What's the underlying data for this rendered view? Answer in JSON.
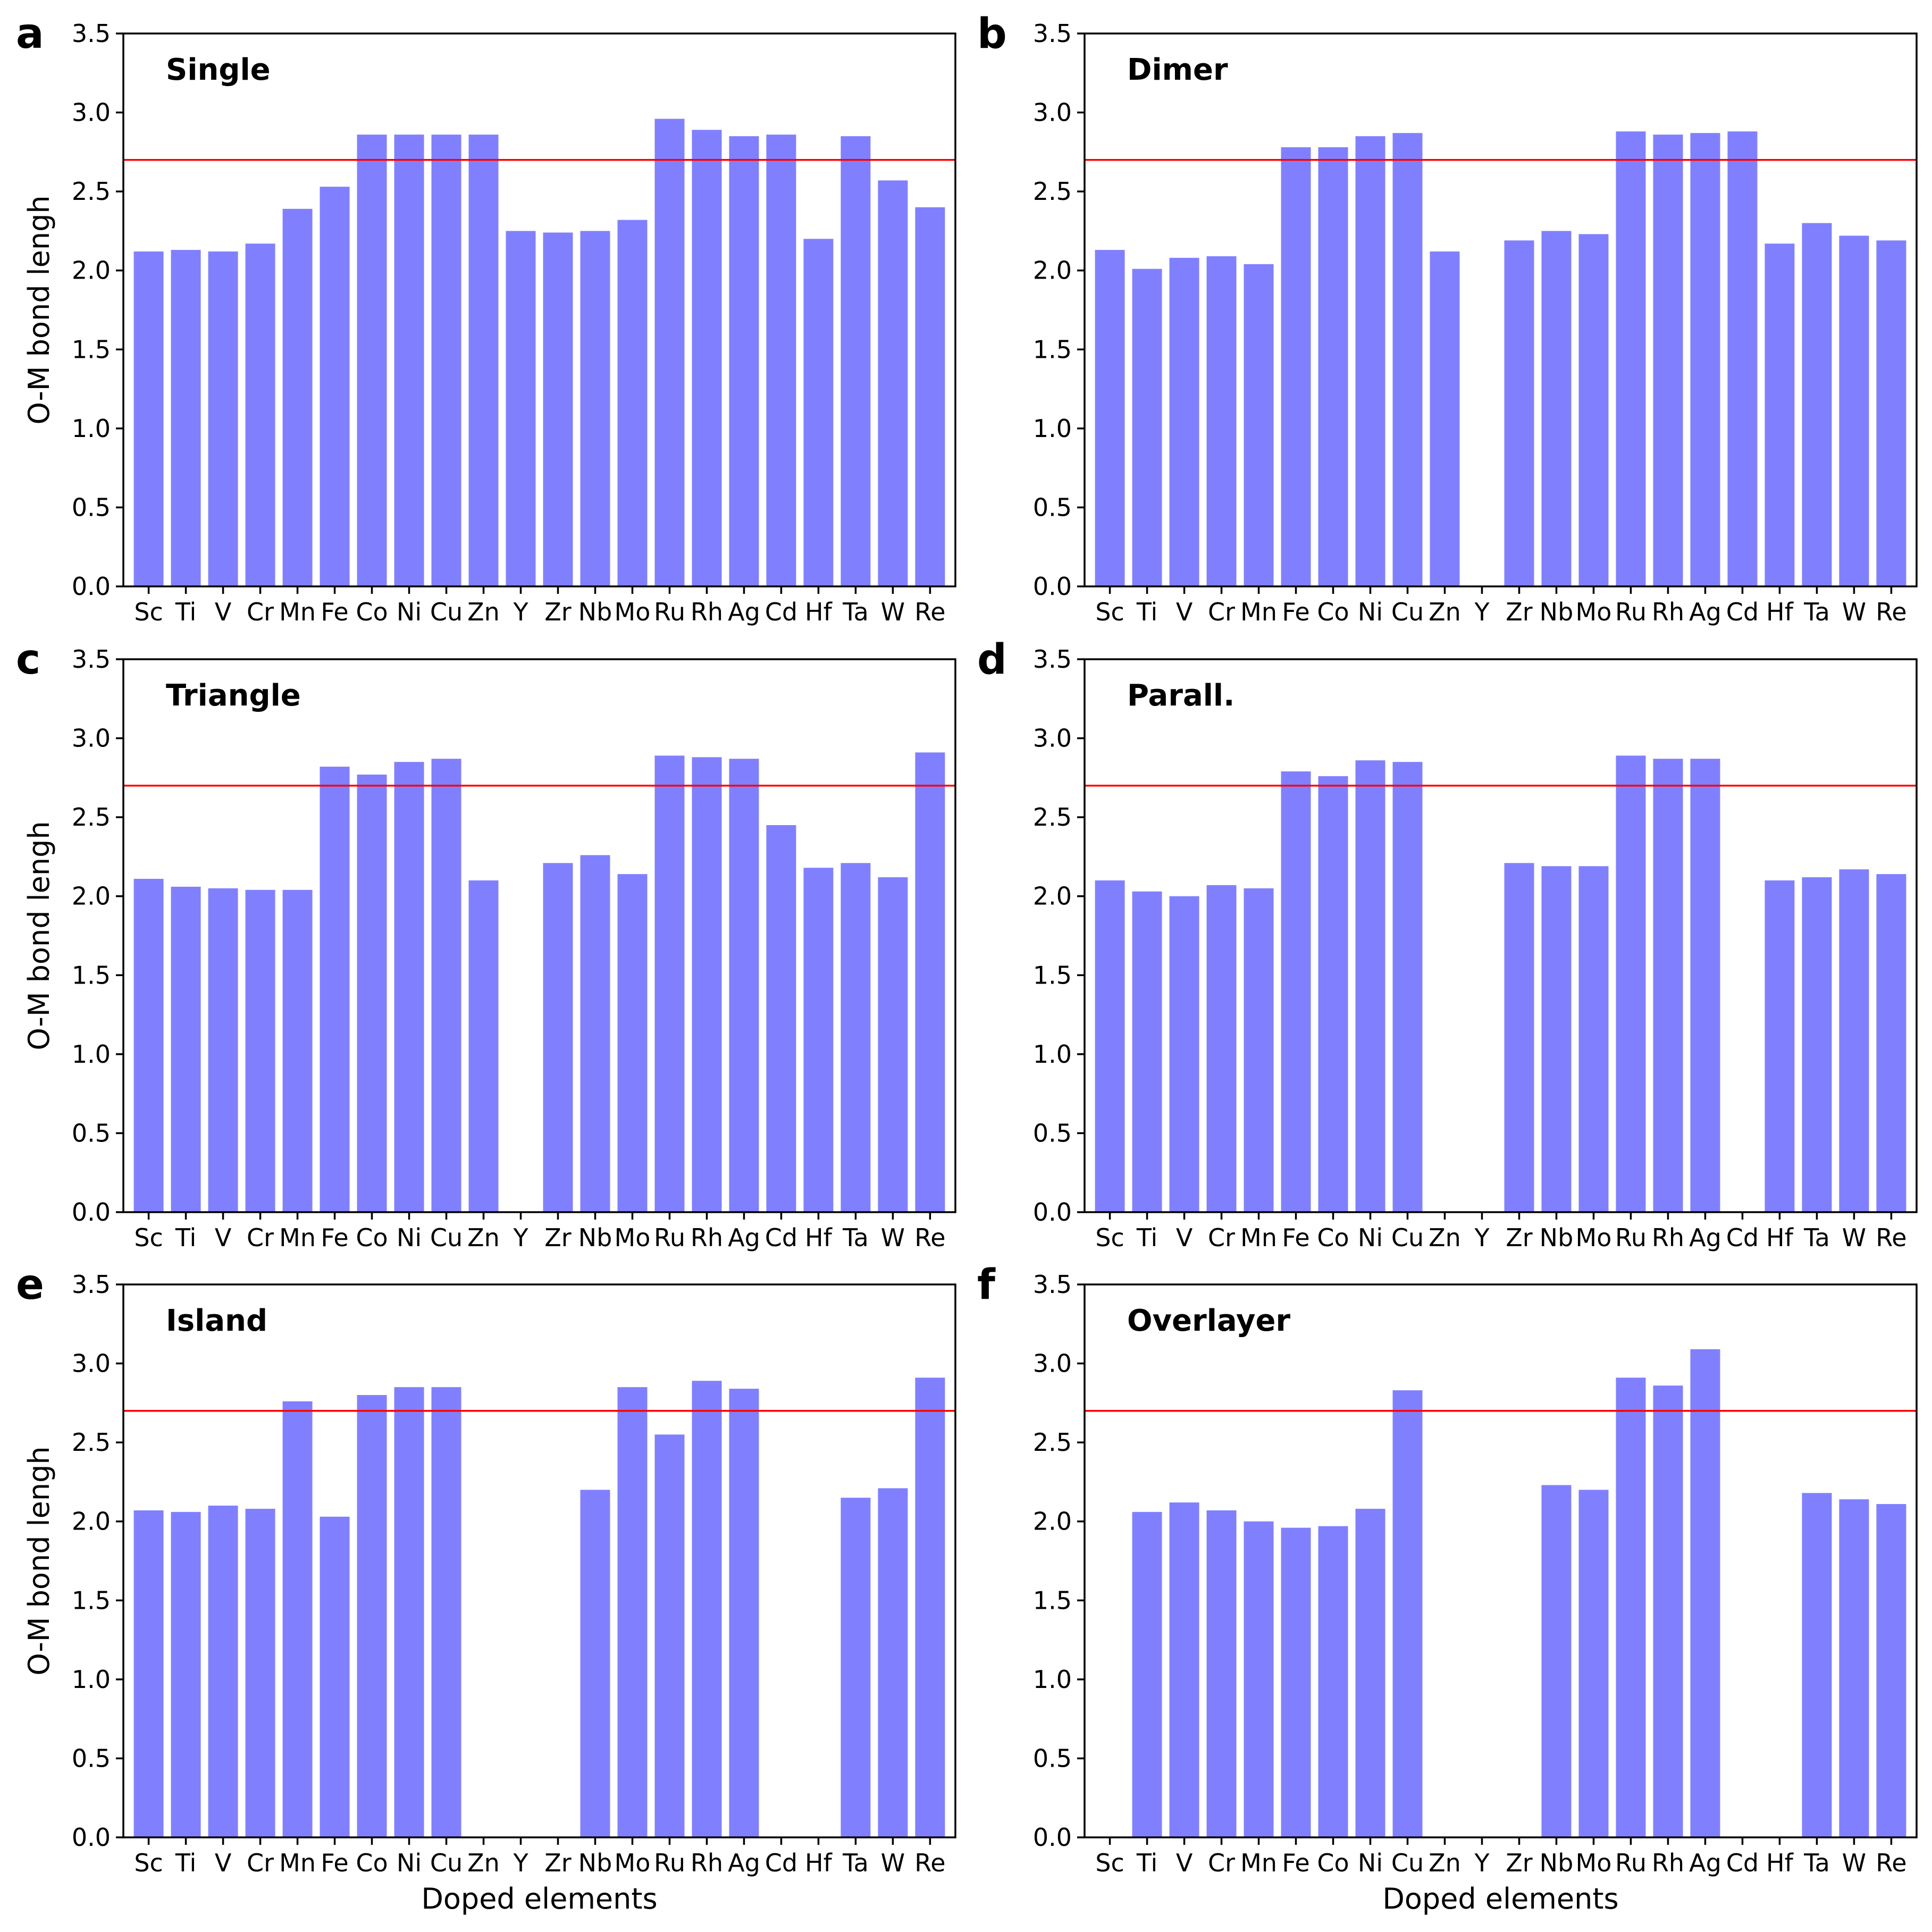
{
  "chart_data": [
    {
      "type": "bar",
      "panel_label": "a",
      "title": "Single",
      "xlabel": "",
      "ylabel": "O-M bond lengh",
      "ylim": [
        0,
        3.5
      ],
      "yticks": [
        "0.0",
        "0.5",
        "1.0",
        "1.5",
        "2.0",
        "2.5",
        "3.0",
        "3.5"
      ],
      "categories": [
        "Sc",
        "Ti",
        "V",
        "Cr",
        "Mn",
        "Fe",
        "Co",
        "Ni",
        "Cu",
        "Zn",
        "Y",
        "Zr",
        "Nb",
        "Mo",
        "Ru",
        "Rh",
        "Ag",
        "Cd",
        "Hf",
        "Ta",
        "W",
        "Re"
      ],
      "values": [
        2.12,
        2.13,
        2.12,
        2.17,
        2.39,
        2.53,
        2.86,
        2.86,
        2.86,
        2.86,
        2.25,
        2.24,
        2.25,
        2.32,
        2.96,
        2.89,
        2.85,
        2.86,
        2.2,
        2.85,
        2.57,
        2.4
      ],
      "reference_line": 2.7,
      "bar_color": "#8080ff",
      "line_color": "#ff0000"
    },
    {
      "type": "bar",
      "panel_label": "b",
      "title": "Dimer",
      "xlabel": "",
      "ylabel": "",
      "ylim": [
        0,
        3.5
      ],
      "yticks": [
        "0.0",
        "0.5",
        "1.0",
        "1.5",
        "2.0",
        "2.5",
        "3.0",
        "3.5"
      ],
      "categories": [
        "Sc",
        "Ti",
        "V",
        "Cr",
        "Mn",
        "Fe",
        "Co",
        "Ni",
        "Cu",
        "Zn",
        "Y",
        "Zr",
        "Nb",
        "Mo",
        "Ru",
        "Rh",
        "Ag",
        "Cd",
        "Hf",
        "Ta",
        "W",
        "Re"
      ],
      "values": [
        2.13,
        2.01,
        2.08,
        2.09,
        2.04,
        2.78,
        2.78,
        2.85,
        2.87,
        2.12,
        null,
        2.19,
        2.25,
        2.23,
        2.88,
        2.86,
        2.87,
        2.88,
        2.17,
        2.3,
        2.22,
        2.19
      ],
      "reference_line": 2.7,
      "bar_color": "#8080ff",
      "line_color": "#ff0000"
    },
    {
      "type": "bar",
      "panel_label": "c",
      "title": "Triangle",
      "xlabel": "",
      "ylabel": "O-M bond lengh",
      "ylim": [
        0,
        3.5
      ],
      "yticks": [
        "0.0",
        "0.5",
        "1.0",
        "1.5",
        "2.0",
        "2.5",
        "3.0",
        "3.5"
      ],
      "categories": [
        "Sc",
        "Ti",
        "V",
        "Cr",
        "Mn",
        "Fe",
        "Co",
        "Ni",
        "Cu",
        "Zn",
        "Y",
        "Zr",
        "Nb",
        "Mo",
        "Ru",
        "Rh",
        "Ag",
        "Cd",
        "Hf",
        "Ta",
        "W",
        "Re"
      ],
      "values": [
        2.11,
        2.06,
        2.05,
        2.04,
        2.04,
        2.82,
        2.77,
        2.85,
        2.87,
        2.1,
        null,
        2.21,
        2.26,
        2.14,
        2.89,
        2.88,
        2.87,
        2.45,
        2.18,
        2.21,
        2.12,
        2.91
      ],
      "reference_line": 2.7,
      "bar_color": "#8080ff",
      "line_color": "#ff0000"
    },
    {
      "type": "bar",
      "panel_label": "d",
      "title": "Parall.",
      "xlabel": "",
      "ylabel": "",
      "ylim": [
        0,
        3.5
      ],
      "yticks": [
        "0.0",
        "0.5",
        "1.0",
        "1.5",
        "2.0",
        "2.5",
        "3.0",
        "3.5"
      ],
      "categories": [
        "Sc",
        "Ti",
        "V",
        "Cr",
        "Mn",
        "Fe",
        "Co",
        "Ni",
        "Cu",
        "Zn",
        "Y",
        "Zr",
        "Nb",
        "Mo",
        "Ru",
        "Rh",
        "Ag",
        "Cd",
        "Hf",
        "Ta",
        "W",
        "Re"
      ],
      "values": [
        2.1,
        2.03,
        2.0,
        2.07,
        2.05,
        2.79,
        2.76,
        2.86,
        2.85,
        null,
        null,
        2.21,
        2.19,
        2.19,
        2.89,
        2.87,
        2.87,
        null,
        2.1,
        2.12,
        2.17,
        2.14
      ],
      "reference_line": 2.7,
      "bar_color": "#8080ff",
      "line_color": "#ff0000"
    },
    {
      "type": "bar",
      "panel_label": "e",
      "title": "Island",
      "xlabel": "Doped elements",
      "ylabel": "O-M bond lengh",
      "ylim": [
        0,
        3.5
      ],
      "yticks": [
        "0.0",
        "0.5",
        "1.0",
        "1.5",
        "2.0",
        "2.5",
        "3.0",
        "3.5"
      ],
      "categories": [
        "Sc",
        "Ti",
        "V",
        "Cr",
        "Mn",
        "Fe",
        "Co",
        "Ni",
        "Cu",
        "Zn",
        "Y",
        "Zr",
        "Nb",
        "Mo",
        "Ru",
        "Rh",
        "Ag",
        "Cd",
        "Hf",
        "Ta",
        "W",
        "Re"
      ],
      "values": [
        2.07,
        2.06,
        2.1,
        2.08,
        2.76,
        2.03,
        2.8,
        2.85,
        2.85,
        null,
        null,
        null,
        2.2,
        2.85,
        2.55,
        2.89,
        2.84,
        null,
        null,
        2.15,
        2.21,
        2.91
      ],
      "reference_line": 2.7,
      "bar_color": "#8080ff",
      "line_color": "#ff0000"
    },
    {
      "type": "bar",
      "panel_label": "f",
      "title": "Overlayer",
      "xlabel": "Doped elements",
      "ylabel": "",
      "ylim": [
        0,
        3.5
      ],
      "yticks": [
        "0.0",
        "0.5",
        "1.0",
        "1.5",
        "2.0",
        "2.5",
        "3.0",
        "3.5"
      ],
      "categories": [
        "Sc",
        "Ti",
        "V",
        "Cr",
        "Mn",
        "Fe",
        "Co",
        "Ni",
        "Cu",
        "Zn",
        "Y",
        "Zr",
        "Nb",
        "Mo",
        "Ru",
        "Rh",
        "Ag",
        "Cd",
        "Hf",
        "Ta",
        "W",
        "Re"
      ],
      "values": [
        null,
        2.06,
        2.12,
        2.07,
        2.0,
        1.96,
        1.97,
        2.08,
        2.83,
        null,
        null,
        null,
        2.23,
        2.2,
        2.91,
        2.86,
        3.09,
        null,
        null,
        2.18,
        2.14,
        2.11
      ],
      "reference_line": 2.7,
      "bar_color": "#8080ff",
      "line_color": "#ff0000"
    }
  ]
}
